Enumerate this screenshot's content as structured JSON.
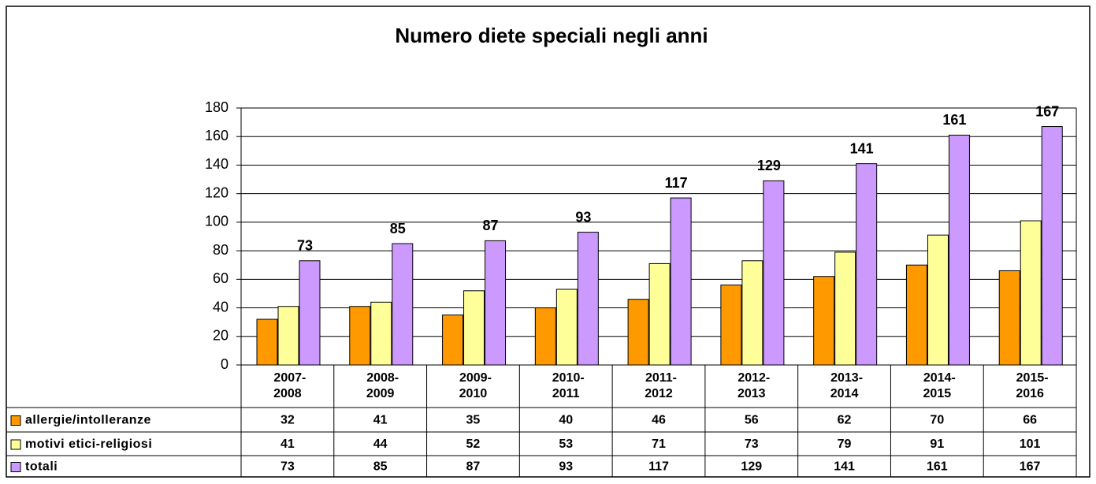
{
  "chart_data": {
    "type": "bar",
    "title": "Numero diete speciali negli anni",
    "categories": [
      "2007-2008",
      "2008-2009",
      "2009-2010",
      "2010-2011",
      "2011-2012",
      "2012-2013",
      "2013-2014",
      "2014-2015",
      "2015-2016"
    ],
    "series": [
      {
        "name": "allergie/intolleranze",
        "color": "#ff9900",
        "values": [
          32,
          41,
          35,
          40,
          46,
          56,
          62,
          70,
          66
        ]
      },
      {
        "name": "motivi etici-religiosi",
        "color": "#ffff99",
        "values": [
          41,
          44,
          52,
          53,
          71,
          73,
          79,
          91,
          101
        ]
      },
      {
        "name": "totali",
        "color": "#cc99ff",
        "values": [
          73,
          85,
          87,
          93,
          117,
          129,
          141,
          161,
          167
        ]
      }
    ],
    "ylim": [
      0,
      180
    ],
    "yticks": [
      0,
      20,
      40,
      60,
      80,
      100,
      120,
      140,
      160,
      180
    ],
    "grid": true
  }
}
